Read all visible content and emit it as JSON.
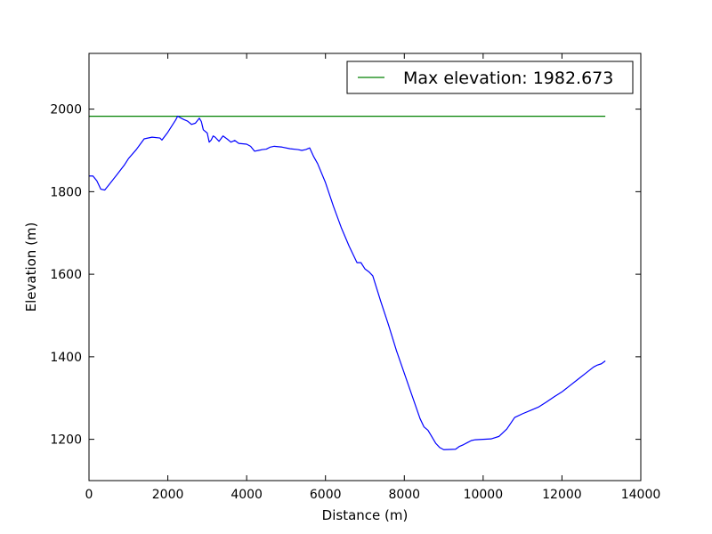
{
  "chart_data": {
    "type": "line",
    "title": "",
    "xlabel": "Distance (m)",
    "ylabel": "Elevation (m)",
    "xlim": [
      0,
      14000
    ],
    "ylim": [
      1100,
      2135
    ],
    "grid": false,
    "legend_placement": "upper-right",
    "x_ticks": [
      0,
      2000,
      4000,
      6000,
      8000,
      10000,
      12000,
      14000
    ],
    "x_tick_labels": [
      "0",
      "2000",
      "4000",
      "6000",
      "8000",
      "10000",
      "12000",
      "14000"
    ],
    "y_ticks": [
      1200,
      1400,
      1600,
      1800,
      2000
    ],
    "y_tick_labels": [
      "1200",
      "1400",
      "1600",
      "1800",
      "2000"
    ],
    "series": [
      {
        "name": "",
        "color": "#0000ff",
        "points": [
          [
            0,
            1838
          ],
          [
            100,
            1838
          ],
          [
            200,
            1826
          ],
          [
            300,
            1806
          ],
          [
            400,
            1804
          ],
          [
            500,
            1816
          ],
          [
            700,
            1840
          ],
          [
            900,
            1865
          ],
          [
            1000,
            1880
          ],
          [
            1200,
            1902
          ],
          [
            1300,
            1915
          ],
          [
            1400,
            1928
          ],
          [
            1600,
            1932
          ],
          [
            1800,
            1930
          ],
          [
            1850,
            1925
          ],
          [
            2000,
            1944
          ],
          [
            2200,
            1974
          ],
          [
            2250,
            1983
          ],
          [
            2300,
            1980
          ],
          [
            2400,
            1975
          ],
          [
            2500,
            1971
          ],
          [
            2600,
            1963
          ],
          [
            2700,
            1966
          ],
          [
            2800,
            1978
          ],
          [
            2850,
            1970
          ],
          [
            2900,
            1950
          ],
          [
            3000,
            1942
          ],
          [
            3050,
            1920
          ],
          [
            3100,
            1925
          ],
          [
            3150,
            1935
          ],
          [
            3200,
            1932
          ],
          [
            3300,
            1922
          ],
          [
            3400,
            1935
          ],
          [
            3500,
            1928
          ],
          [
            3600,
            1920
          ],
          [
            3700,
            1924
          ],
          [
            3800,
            1917
          ],
          [
            4000,
            1915
          ],
          [
            4100,
            1910
          ],
          [
            4200,
            1898
          ],
          [
            4300,
            1900
          ],
          [
            4400,
            1902
          ],
          [
            4500,
            1903
          ],
          [
            4600,
            1908
          ],
          [
            4700,
            1910
          ],
          [
            4900,
            1908
          ],
          [
            5100,
            1904
          ],
          [
            5300,
            1902
          ],
          [
            5400,
            1900
          ],
          [
            5500,
            1902
          ],
          [
            5600,
            1906
          ],
          [
            5700,
            1885
          ],
          [
            5800,
            1868
          ],
          [
            6000,
            1822
          ],
          [
            6200,
            1765
          ],
          [
            6400,
            1713
          ],
          [
            6600,
            1668
          ],
          [
            6800,
            1628
          ],
          [
            6900,
            1628
          ],
          [
            7000,
            1613
          ],
          [
            7100,
            1606
          ],
          [
            7200,
            1596
          ],
          [
            7400,
            1535
          ],
          [
            7600,
            1477
          ],
          [
            7800,
            1415
          ],
          [
            8000,
            1360
          ],
          [
            8200,
            1305
          ],
          [
            8400,
            1250
          ],
          [
            8500,
            1230
          ],
          [
            8600,
            1222
          ],
          [
            8700,
            1206
          ],
          [
            8800,
            1190
          ],
          [
            8900,
            1180
          ],
          [
            9000,
            1175
          ],
          [
            9300,
            1176
          ],
          [
            9400,
            1183
          ],
          [
            9500,
            1187
          ],
          [
            9600,
            1192
          ],
          [
            9700,
            1197
          ],
          [
            9800,
            1199
          ],
          [
            10000,
            1200
          ],
          [
            10200,
            1201
          ],
          [
            10400,
            1207
          ],
          [
            10600,
            1225
          ],
          [
            10800,
            1253
          ],
          [
            11000,
            1262
          ],
          [
            11200,
            1270
          ],
          [
            11400,
            1278
          ],
          [
            11600,
            1290
          ],
          [
            11800,
            1303
          ],
          [
            12000,
            1315
          ],
          [
            12200,
            1330
          ],
          [
            12400,
            1345
          ],
          [
            12600,
            1360
          ],
          [
            12800,
            1375
          ],
          [
            12900,
            1380
          ],
          [
            13000,
            1383
          ],
          [
            13100,
            1390
          ]
        ]
      },
      {
        "name": "Max elevation: 1982.673",
        "color": "#008000",
        "points": [
          [
            0,
            1982.673
          ],
          [
            13100,
            1982.673
          ]
        ]
      }
    ]
  }
}
